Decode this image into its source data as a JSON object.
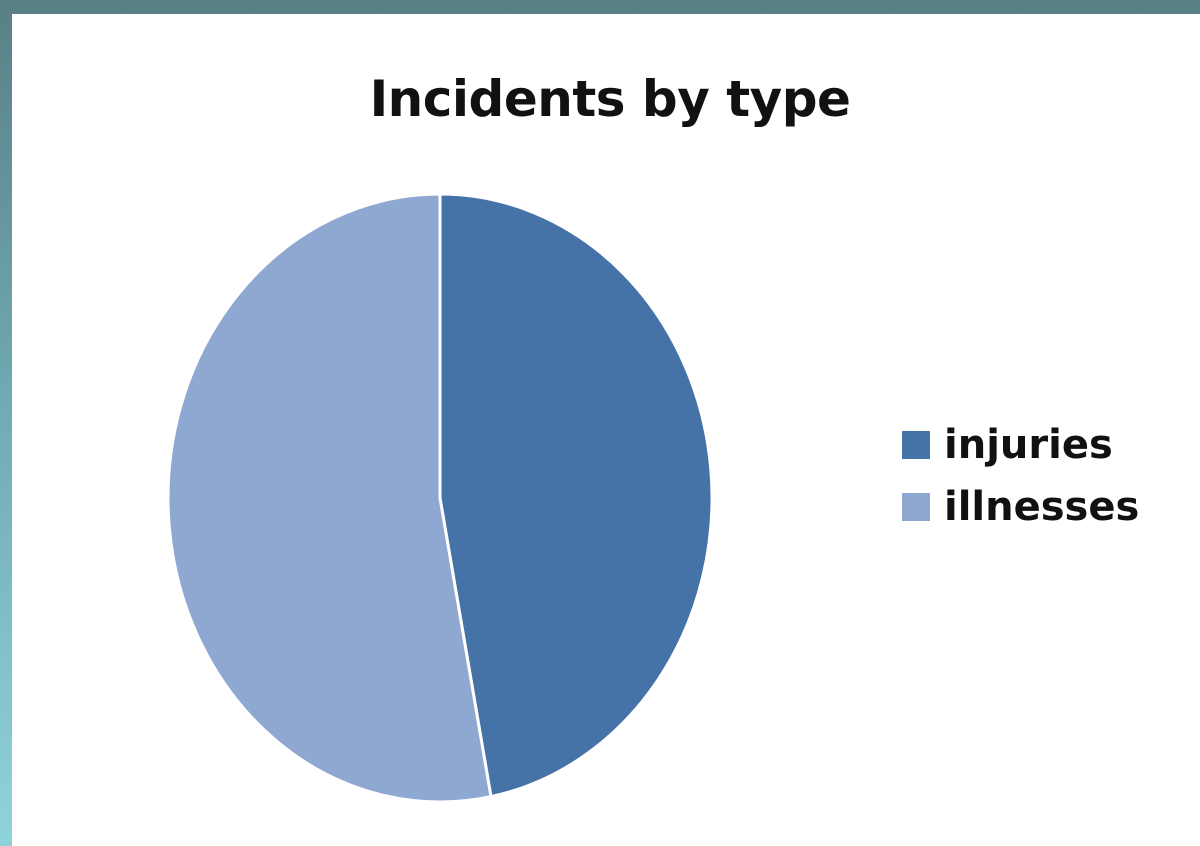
{
  "chart_data": {
    "type": "pie",
    "title": "Incidents by type",
    "categories": [
      "injuries",
      "illnesses"
    ],
    "values": [
      47,
      53
    ],
    "colors": [
      "#4572a7",
      "#8ea8d2"
    ],
    "legend_position": "right",
    "start_angle_deg": 0,
    "direction": "clockwise"
  }
}
